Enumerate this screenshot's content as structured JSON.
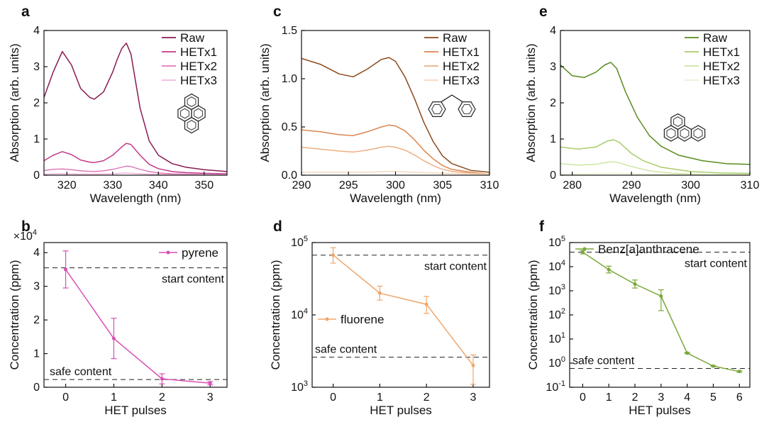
{
  "chart_data": [
    {
      "panel": "a",
      "type": "line",
      "xlabel": "Wavelength (nm)",
      "ylabel": "Absorption (arb. units)",
      "xlim": [
        315,
        355
      ],
      "ylim": [
        0,
        4
      ],
      "xticks": [
        320,
        330,
        340,
        350
      ],
      "yticks": [
        0,
        1,
        2,
        3,
        4
      ],
      "legend_position": "top-right",
      "molecule": "pyrene",
      "series": [
        {
          "name": "Raw",
          "color": "#8b1a52",
          "x": [
            315,
            317,
            319,
            321,
            323,
            325,
            326,
            328,
            330,
            331,
            332,
            333,
            334,
            335,
            336,
            338,
            340,
            343,
            346,
            350,
            355
          ],
          "y": [
            2.15,
            2.85,
            3.42,
            3.05,
            2.4,
            2.15,
            2.1,
            2.3,
            2.85,
            3.2,
            3.5,
            3.65,
            3.35,
            2.6,
            1.85,
            0.95,
            0.55,
            0.32,
            0.22,
            0.15,
            0.1
          ]
        },
        {
          "name": "HETx1",
          "color": "#c2398a",
          "x": [
            315,
            317,
            319,
            321,
            323,
            325,
            326,
            328,
            330,
            332,
            333,
            334,
            336,
            338,
            340,
            343,
            346,
            350,
            355
          ],
          "y": [
            0.4,
            0.55,
            0.65,
            0.57,
            0.42,
            0.36,
            0.35,
            0.4,
            0.55,
            0.78,
            0.88,
            0.85,
            0.55,
            0.3,
            0.18,
            0.1,
            0.07,
            0.05,
            0.04
          ]
        },
        {
          "name": "HETx2",
          "color": "#e07ab8",
          "x": [
            315,
            317,
            319,
            321,
            323,
            326,
            328,
            330,
            332,
            333,
            334,
            336,
            338,
            340,
            343,
            350,
            355
          ],
          "y": [
            0.13,
            0.16,
            0.17,
            0.15,
            0.12,
            0.1,
            0.12,
            0.16,
            0.22,
            0.25,
            0.24,
            0.16,
            0.1,
            0.06,
            0.04,
            0.02,
            0.02
          ]
        },
        {
          "name": "HETx3",
          "color": "#f2b6d9",
          "x": [
            315,
            319,
            323,
            326,
            330,
            333,
            336,
            340,
            345,
            355
          ],
          "y": [
            0.03,
            0.04,
            0.03,
            0.03,
            0.04,
            0.06,
            0.04,
            0.02,
            0.01,
            0.01
          ]
        }
      ]
    },
    {
      "panel": "b",
      "type": "line",
      "xlabel": "HET pulses",
      "ylabel": "Concentration (ppm)",
      "yscale": "linear",
      "yexponent_label": "×10",
      "yexponent_sup": "4",
      "xlim": [
        -0.45,
        3.35
      ],
      "ylim": [
        0,
        43000
      ],
      "xticks": [
        0,
        1,
        2,
        3
      ],
      "yticks": [
        0,
        10000,
        20000,
        30000,
        40000
      ],
      "yticklabels": [
        "0",
        "1",
        "2",
        "3",
        "4"
      ],
      "legend_position": "top-right",
      "series": [
        {
          "name": "pyrene",
          "color": "#d94fb5",
          "x": [
            0,
            1,
            2,
            3
          ],
          "y": [
            35000,
            14500,
            2500,
            1200
          ],
          "err": [
            5500,
            6000,
            1500,
            500
          ]
        }
      ],
      "reference_lines": [
        {
          "label": "start content",
          "y": 35500
        },
        {
          "label": "safe content",
          "y": 2300
        }
      ]
    },
    {
      "panel": "c",
      "type": "line",
      "xlabel": "Wavelength (nm)",
      "ylabel": "Absorption (arb. units)",
      "xlim": [
        290,
        310
      ],
      "ylim": [
        0,
        1.5
      ],
      "xticks": [
        290,
        295,
        300,
        305,
        310
      ],
      "yticks": [
        0.0,
        0.5,
        1.0,
        1.5
      ],
      "yticklabels": [
        "0.0",
        "0.5",
        "1.0",
        "1.5"
      ],
      "legend_position": "top-right",
      "molecule": "fluorene",
      "series": [
        {
          "name": "Raw",
          "color": "#8b4a1c",
          "x": [
            290,
            292,
            294,
            295.5,
            297,
            298.5,
            299.3,
            300,
            301,
            302,
            303,
            304,
            305,
            306,
            308,
            310
          ],
          "y": [
            1.21,
            1.15,
            1.05,
            1.02,
            1.1,
            1.2,
            1.22,
            1.18,
            1.02,
            0.8,
            0.55,
            0.35,
            0.2,
            0.12,
            0.05,
            0.03
          ]
        },
        {
          "name": "HETx1",
          "color": "#d9874f",
          "x": [
            290,
            292,
            294,
            295.5,
            297,
            298.5,
            299.3,
            300,
            301,
            302,
            303,
            304,
            305,
            306,
            308,
            310
          ],
          "y": [
            0.47,
            0.45,
            0.42,
            0.41,
            0.45,
            0.5,
            0.52,
            0.51,
            0.46,
            0.37,
            0.26,
            0.17,
            0.1,
            0.06,
            0.03,
            0.01
          ]
        },
        {
          "name": "HETx2",
          "color": "#eeaf84",
          "x": [
            290,
            292,
            294,
            295.5,
            297,
            298.5,
            299.3,
            300,
            301,
            302,
            303,
            304,
            305,
            306,
            308,
            310
          ],
          "y": [
            0.29,
            0.27,
            0.25,
            0.24,
            0.26,
            0.29,
            0.3,
            0.29,
            0.26,
            0.21,
            0.15,
            0.1,
            0.06,
            0.04,
            0.02,
            0.01
          ]
        },
        {
          "name": "HETx3",
          "color": "#f8d7bd",
          "x": [
            290,
            294,
            297,
            299.3,
            302,
            305,
            310
          ],
          "y": [
            0.03,
            0.03,
            0.03,
            0.04,
            0.03,
            0.02,
            0.01
          ]
        }
      ]
    },
    {
      "panel": "d",
      "type": "line",
      "xlabel": "HET pulses",
      "ylabel": "Concentration (ppm)",
      "yscale": "log",
      "xlim": [
        -0.45,
        3.35
      ],
      "ylim": [
        1000,
        100000
      ],
      "xticks": [
        0,
        1,
        2,
        3
      ],
      "yticks": [
        1000,
        10000,
        100000
      ],
      "ytick_base": [
        "10",
        "10",
        "10"
      ],
      "ytick_exp": [
        "3",
        "4",
        "5"
      ],
      "legend_position": "center-left",
      "series": [
        {
          "name": "fluorene",
          "color": "#f0a66b",
          "x": [
            0,
            1,
            2,
            3
          ],
          "y": [
            67000,
            20000,
            14000,
            2000
          ],
          "err_low": [
            52000,
            16000,
            10500,
            1100
          ],
          "err_high": [
            85000,
            25000,
            18000,
            2800
          ]
        }
      ],
      "reference_lines": [
        {
          "label": "start content",
          "y": 67000
        },
        {
          "label": "safe content",
          "y": 2600
        }
      ]
    },
    {
      "panel": "e",
      "type": "line",
      "xlabel": "Wavelength (nm)",
      "ylabel": "Absorption (arb. units)",
      "xlim": [
        278,
        310
      ],
      "ylim": [
        0,
        4
      ],
      "xticks": [
        280,
        290,
        300,
        310
      ],
      "yticks": [
        0,
        1,
        2,
        3,
        4
      ],
      "legend_position": "top-right",
      "molecule": "benz[a]anthracene",
      "series": [
        {
          "name": "Raw",
          "color": "#5a8c1e",
          "x": [
            278,
            280,
            282,
            284,
            285.5,
            286.5,
            287.5,
            289,
            291,
            293,
            295,
            298,
            302,
            306,
            310
          ],
          "y": [
            3.05,
            2.75,
            2.7,
            2.85,
            3.05,
            3.12,
            2.95,
            2.3,
            1.6,
            1.1,
            0.8,
            0.55,
            0.4,
            0.32,
            0.3
          ]
        },
        {
          "name": "HETx1",
          "color": "#a9cc6a",
          "x": [
            278,
            281,
            284,
            286,
            287,
            288,
            290,
            292,
            295,
            300,
            305,
            310
          ],
          "y": [
            0.78,
            0.72,
            0.78,
            0.95,
            0.98,
            0.9,
            0.6,
            0.4,
            0.22,
            0.1,
            0.06,
            0.05
          ]
        },
        {
          "name": "HETx2",
          "color": "#cfe6a2",
          "x": [
            278,
            281,
            284,
            286,
            287,
            288,
            290,
            293,
            297,
            303,
            310
          ],
          "y": [
            0.32,
            0.28,
            0.3,
            0.36,
            0.37,
            0.34,
            0.24,
            0.12,
            0.05,
            0.02,
            0.02
          ]
        },
        {
          "name": "HETx3",
          "color": "#e8f3d2",
          "x": [
            278,
            287,
            295,
            310
          ],
          "y": [
            0.03,
            0.05,
            0.02,
            0.01
          ]
        }
      ]
    },
    {
      "panel": "f",
      "type": "line",
      "xlabel": "HET pulses",
      "ylabel": "Concentration (ppm)",
      "yscale": "log",
      "xlim": [
        -0.5,
        6.4
      ],
      "ylim": [
        0.1,
        100000
      ],
      "xticks": [
        0,
        1,
        2,
        3,
        4,
        5,
        6
      ],
      "yticks": [
        0.1,
        1,
        10,
        100,
        1000,
        10000,
        100000
      ],
      "ytick_base": [
        "10",
        "10",
        "10",
        "10",
        "10",
        "10",
        "10"
      ],
      "ytick_exp": [
        "-1",
        "0",
        "1",
        "2",
        "3",
        "4",
        "5"
      ],
      "legend_position": "top-left",
      "series": [
        {
          "name": "Benz[a]anthracene",
          "color": "#7aa83a",
          "x": [
            0,
            1,
            2,
            3,
            4,
            5,
            6
          ],
          "y": [
            40000,
            7500,
            1900,
            600,
            2.6,
            0.75,
            0.45
          ],
          "err_low": [
            34000,
            5500,
            1300,
            150,
            2.5,
            0.72,
            0.42
          ],
          "err_high": [
            47000,
            10500,
            2800,
            1100,
            2.8,
            0.78,
            0.48
          ]
        }
      ],
      "reference_lines": [
        {
          "label": "start content",
          "y": 40000
        },
        {
          "label": "safe content",
          "y": 0.6
        }
      ]
    }
  ]
}
